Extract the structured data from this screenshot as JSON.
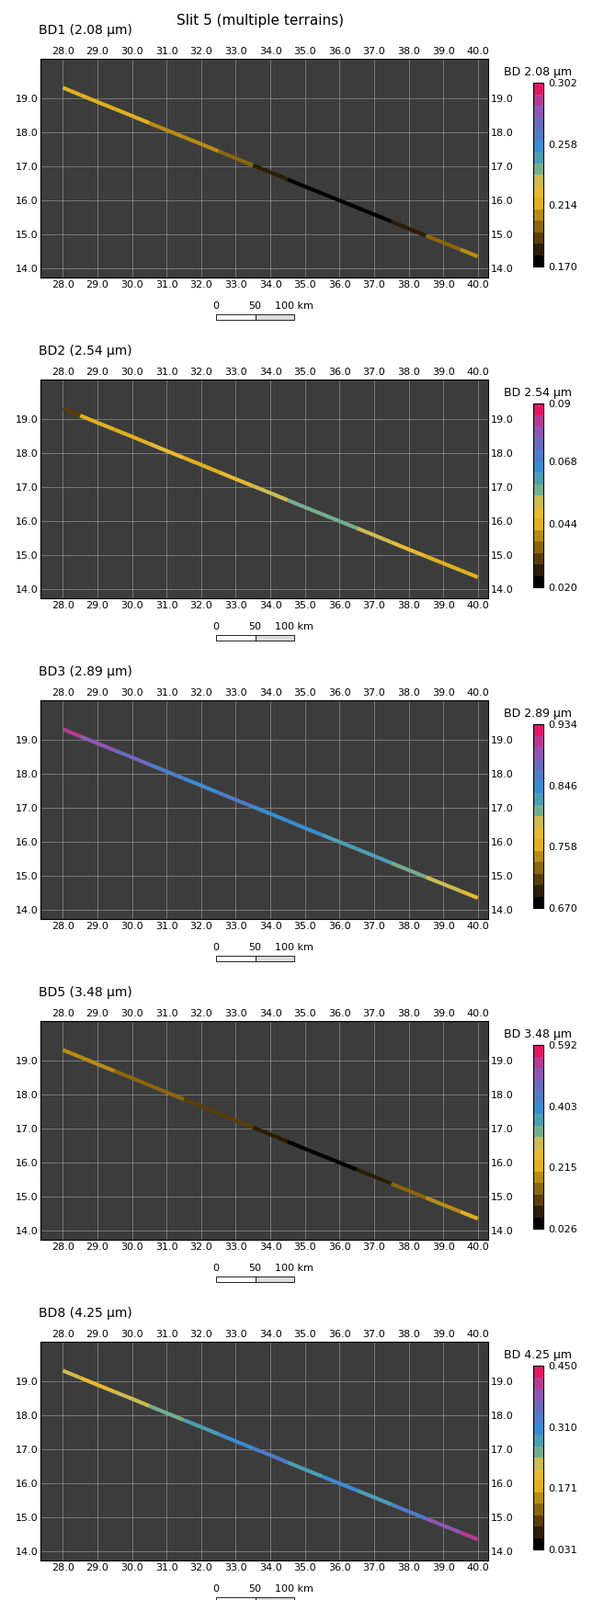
{
  "title": "Slit 5 (multiple terrains)",
  "chart_data": [
    {
      "type": "map",
      "title": "BD1 (2.08 µm)",
      "grid": true,
      "xlim": [
        27.35,
        40.3
      ],
      "ylim": [
        13.73,
        20.17
      ],
      "xticks": [
        {
          "value": 28,
          "label": "28.0"
        },
        {
          "value": 29,
          "label": "29.0"
        },
        {
          "value": 30,
          "label": "30.0"
        },
        {
          "value": 31,
          "label": "31.0"
        },
        {
          "value": 32,
          "label": "32.0"
        },
        {
          "value": 33,
          "label": "33.0"
        },
        {
          "value": 34,
          "label": "34.0"
        },
        {
          "value": 35,
          "label": "35.0"
        },
        {
          "value": 36,
          "label": "36.0"
        },
        {
          "value": 37,
          "label": "37.0"
        },
        {
          "value": 38,
          "label": "38.0"
        },
        {
          "value": 39,
          "label": "39.0"
        },
        {
          "value": 40,
          "label": "40.0"
        }
      ],
      "yticks": [
        {
          "value": 14,
          "label": "14.0"
        },
        {
          "value": 15,
          "label": "15.0"
        },
        {
          "value": 16,
          "label": "16.0"
        },
        {
          "value": 17,
          "label": "17.0"
        },
        {
          "value": 18,
          "label": "18.0"
        },
        {
          "value": 19,
          "label": "19.0"
        }
      ],
      "slit": {
        "x": [
          28,
          29,
          30,
          31,
          32,
          33,
          34,
          35,
          36,
          37,
          38,
          39,
          40
        ],
        "y": [
          19.32,
          18.9,
          18.49,
          18.07,
          17.66,
          17.24,
          16.83,
          16.41,
          16.0,
          15.59,
          15.17,
          14.76,
          14.35
        ],
        "values": [
          0.215,
          0.214,
          0.212,
          0.21,
          0.205,
          0.195,
          0.18,
          0.175,
          0.172,
          0.175,
          0.185,
          0.2,
          0.21
        ]
      },
      "colorbar": {
        "label": "BD 2.08 µm",
        "range": [
          0.17,
          0.302
        ],
        "ticks": [
          {
            "value": 0.17,
            "label": "0.170"
          },
          0.214,
          0.258,
          0.302
        ]
      },
      "scale_bar": {
        "ticks": [
          0,
          50,
          {
            "value": 100,
            "label": "100 km"
          }
        ]
      }
    },
    {
      "type": "map",
      "title": "BD2 (2.54 µm)",
      "grid": true,
      "xlim": [
        27.35,
        40.3
      ],
      "ylim": [
        13.73,
        20.17
      ],
      "xticks": [
        {
          "value": 28,
          "label": "28.0"
        },
        {
          "value": 29,
          "label": "29.0"
        },
        {
          "value": 30,
          "label": "30.0"
        },
        {
          "value": 31,
          "label": "31.0"
        },
        {
          "value": 32,
          "label": "32.0"
        },
        {
          "value": 33,
          "label": "33.0"
        },
        {
          "value": 34,
          "label": "34.0"
        },
        {
          "value": 35,
          "label": "35.0"
        },
        {
          "value": 36,
          "label": "36.0"
        },
        {
          "value": 37,
          "label": "37.0"
        },
        {
          "value": 38,
          "label": "38.0"
        },
        {
          "value": 39,
          "label": "39.0"
        },
        {
          "value": 40,
          "label": "40.0"
        }
      ],
      "yticks": [
        {
          "value": 14,
          "label": "14.0"
        },
        {
          "value": 15,
          "label": "15.0"
        },
        {
          "value": 16,
          "label": "16.0"
        },
        {
          "value": 17,
          "label": "17.0"
        },
        {
          "value": 18,
          "label": "18.0"
        },
        {
          "value": 19,
          "label": "19.0"
        }
      ],
      "slit": {
        "x": [
          28,
          29,
          30,
          31,
          32,
          33,
          34,
          35,
          36,
          37,
          38,
          39,
          40
        ],
        "y": [
          19.32,
          18.9,
          18.49,
          18.07,
          17.66,
          17.24,
          16.83,
          16.41,
          16.0,
          15.59,
          15.17,
          14.76,
          14.35
        ],
        "values": [
          0.03,
          0.045,
          0.046,
          0.047,
          0.046,
          0.048,
          0.052,
          0.056,
          0.058,
          0.052,
          0.048,
          0.046,
          0.044
        ]
      },
      "colorbar": {
        "label": "BD 2.54 µm",
        "range": [
          0.02,
          0.09
        ],
        "ticks": [
          {
            "value": 0.02,
            "label": "0.020"
          },
          0.044,
          0.068,
          0.09
        ]
      },
      "scale_bar": {
        "ticks": [
          0,
          50,
          {
            "value": 100,
            "label": "100 km"
          }
        ]
      }
    },
    {
      "type": "map",
      "title": "BD3 (2.89 µm)",
      "grid": true,
      "xlim": [
        27.35,
        40.3
      ],
      "ylim": [
        13.73,
        20.17
      ],
      "xticks": [
        {
          "value": 28,
          "label": "28.0"
        },
        {
          "value": 29,
          "label": "29.0"
        },
        {
          "value": 30,
          "label": "30.0"
        },
        {
          "value": 31,
          "label": "31.0"
        },
        {
          "value": 32,
          "label": "32.0"
        },
        {
          "value": 33,
          "label": "33.0"
        },
        {
          "value": 34,
          "label": "34.0"
        },
        {
          "value": 35,
          "label": "35.0"
        },
        {
          "value": 36,
          "label": "36.0"
        },
        {
          "value": 37,
          "label": "37.0"
        },
        {
          "value": 38,
          "label": "38.0"
        },
        {
          "value": 39,
          "label": "39.0"
        },
        {
          "value": 40,
          "label": "40.0"
        }
      ],
      "yticks": [
        {
          "value": 14,
          "label": "14.0"
        },
        {
          "value": 15,
          "label": "15.0"
        },
        {
          "value": 16,
          "label": "16.0"
        },
        {
          "value": 17,
          "label": "17.0"
        },
        {
          "value": 18,
          "label": "18.0"
        },
        {
          "value": 19,
          "label": "19.0"
        }
      ],
      "slit": {
        "x": [
          28,
          29,
          30,
          31,
          32,
          33,
          34,
          35,
          36,
          37,
          38,
          39,
          40
        ],
        "y": [
          19.32,
          18.9,
          18.49,
          18.07,
          17.66,
          17.24,
          16.83,
          16.41,
          16.0,
          15.59,
          15.17,
          14.76,
          14.35
        ],
        "values": [
          0.91,
          0.89,
          0.87,
          0.86,
          0.85,
          0.86,
          0.85,
          0.84,
          0.83,
          0.82,
          0.81,
          0.79,
          0.78
        ]
      },
      "colorbar": {
        "label": "BD 2.89 µm",
        "range": [
          0.67,
          0.934
        ],
        "ticks": [
          {
            "value": 0.67,
            "label": "0.670"
          },
          0.758,
          0.846,
          0.934
        ]
      },
      "scale_bar": {
        "ticks": [
          0,
          50,
          {
            "value": 100,
            "label": "100 km"
          }
        ]
      }
    },
    {
      "type": "map",
      "title": "BD5 (3.48 µm)",
      "grid": true,
      "xlim": [
        27.35,
        40.3
      ],
      "ylim": [
        13.73,
        20.17
      ],
      "xticks": [
        {
          "value": 28,
          "label": "28.0"
        },
        {
          "value": 29,
          "label": "29.0"
        },
        {
          "value": 30,
          "label": "30.0"
        },
        {
          "value": 31,
          "label": "31.0"
        },
        {
          "value": 32,
          "label": "32.0"
        },
        {
          "value": 33,
          "label": "33.0"
        },
        {
          "value": 34,
          "label": "34.0"
        },
        {
          "value": 35,
          "label": "35.0"
        },
        {
          "value": 36,
          "label": "36.0"
        },
        {
          "value": 37,
          "label": "37.0"
        },
        {
          "value": 38,
          "label": "38.0"
        },
        {
          "value": 39,
          "label": "39.0"
        },
        {
          "value": 40,
          "label": "40.0"
        }
      ],
      "yticks": [
        {
          "value": 14,
          "label": "14.0"
        },
        {
          "value": 15,
          "label": "15.0"
        },
        {
          "value": 16,
          "label": "16.0"
        },
        {
          "value": 17,
          "label": "17.0"
        },
        {
          "value": 18,
          "label": "18.0"
        },
        {
          "value": 19,
          "label": "19.0"
        }
      ],
      "slit": {
        "x": [
          28,
          29,
          30,
          31,
          32,
          33,
          34,
          35,
          36,
          37,
          38,
          39,
          40
        ],
        "y": [
          19.32,
          18.9,
          18.49,
          18.07,
          17.66,
          17.24,
          16.83,
          16.41,
          16.0,
          15.59,
          15.17,
          14.76,
          14.35
        ],
        "values": [
          0.19,
          0.17,
          0.16,
          0.15,
          0.13,
          0.1,
          0.07,
          0.05,
          0.06,
          0.09,
          0.14,
          0.19,
          0.21
        ]
      },
      "colorbar": {
        "label": "BD 3.48 µm",
        "range": [
          0.026,
          0.592
        ],
        "ticks": [
          0.026,
          0.215,
          0.403,
          0.592
        ]
      },
      "scale_bar": {
        "ticks": [
          0,
          50,
          {
            "value": 100,
            "label": "100 km"
          }
        ]
      }
    },
    {
      "type": "map",
      "title": "BD8 (4.25 µm)",
      "grid": true,
      "xlim": [
        27.35,
        40.3
      ],
      "ylim": [
        13.73,
        20.17
      ],
      "xticks": [
        {
          "value": 28,
          "label": "28.0"
        },
        {
          "value": 29,
          "label": "29.0"
        },
        {
          "value": 30,
          "label": "30.0"
        },
        {
          "value": 31,
          "label": "31.0"
        },
        {
          "value": 32,
          "label": "32.0"
        },
        {
          "value": 33,
          "label": "33.0"
        },
        {
          "value": 34,
          "label": "34.0"
        },
        {
          "value": 35,
          "label": "35.0"
        },
        {
          "value": 36,
          "label": "36.0"
        },
        {
          "value": 37,
          "label": "37.0"
        },
        {
          "value": 38,
          "label": "38.0"
        },
        {
          "value": 39,
          "label": "39.0"
        },
        {
          "value": 40,
          "label": "40.0"
        }
      ],
      "yticks": [
        {
          "value": 14,
          "label": "14.0"
        },
        {
          "value": 15,
          "label": "15.0"
        },
        {
          "value": 16,
          "label": "16.0"
        },
        {
          "value": 17,
          "label": "17.0"
        },
        {
          "value": 18,
          "label": "18.0"
        },
        {
          "value": 19,
          "label": "19.0"
        }
      ],
      "slit": {
        "x": [
          28,
          29,
          30,
          31,
          32,
          33,
          34,
          35,
          36,
          37,
          38,
          39,
          40
        ],
        "y": [
          19.32,
          18.9,
          18.49,
          18.07,
          17.66,
          17.24,
          16.83,
          16.41,
          16.0,
          15.59,
          15.17,
          14.76,
          14.35
        ],
        "values": [
          0.22,
          0.2,
          0.22,
          0.25,
          0.28,
          0.3,
          0.32,
          0.29,
          0.3,
          0.28,
          0.33,
          0.38,
          0.42
        ]
      },
      "colorbar": {
        "label": "BD 4.25 µm",
        "range": [
          0.031,
          0.45
        ],
        "ticks": [
          0.031,
          0.171,
          {
            "value": 0.31,
            "label": "0.310"
          },
          {
            "value": 0.45,
            "label": "0.450"
          }
        ]
      },
      "scale_bar": {
        "ticks": [
          0,
          50,
          {
            "value": 100,
            "label": "100 km"
          }
        ]
      }
    }
  ]
}
